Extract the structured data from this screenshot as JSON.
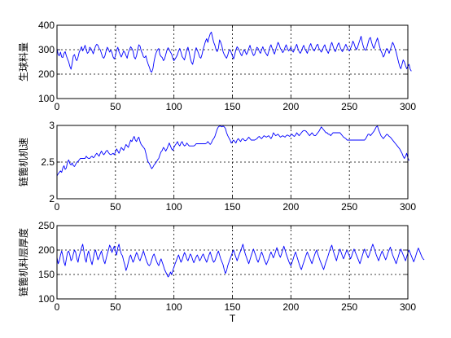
{
  "figure": {
    "background": "#ffffff",
    "line_color": "#0000ff",
    "grid_color": "#000000"
  },
  "chart_data": [
    {
      "type": "line",
      "ylabel": "生球料量",
      "xlabel": "",
      "xlim": [
        0,
        300
      ],
      "ylim": [
        100,
        400
      ],
      "xticks": [
        "0",
        "50",
        "100",
        "150",
        "200",
        "250",
        "300"
      ],
      "yticks": [
        "100",
        "200",
        "300",
        "400"
      ],
      "grid": "dotted",
      "series": [
        {
          "x_start": 0,
          "x_step": 1,
          "values": [
            305,
            280,
            275,
            290,
            270,
            268,
            285,
            292,
            275,
            262,
            250,
            232,
            220,
            245,
            275,
            280,
            262,
            255,
            270,
            290,
            300,
            312,
            295,
            305,
            318,
            300,
            285,
            290,
            310,
            305,
            295,
            283,
            300,
            315,
            322,
            318,
            305,
            300,
            285,
            270,
            265,
            275,
            295,
            310,
            302,
            290,
            298,
            288,
            270,
            262,
            275,
            298,
            310,
            292,
            280,
            270,
            282,
            295,
            288,
            276,
            265,
            288,
            300,
            312,
            305,
            295,
            270,
            262,
            275,
            300,
            320,
            315,
            295,
            285,
            270,
            268,
            275,
            255,
            240,
            228,
            212,
            208,
            222,
            252,
            275,
            290,
            300,
            305,
            280,
            272,
            268,
            255,
            262,
            280,
            298,
            308,
            300,
            290,
            282,
            265,
            255,
            262,
            270,
            280,
            295,
            305,
            290,
            272,
            265,
            258,
            278,
            300,
            310,
            290,
            265,
            248,
            240,
            262,
            290,
            308,
            298,
            285,
            270,
            265,
            280,
            302,
            318,
            335,
            345,
            330,
            350,
            365,
            372,
            350,
            330,
            318,
            300,
            292,
            305,
            340,
            330,
            315,
            292,
            280,
            272,
            265,
            278,
            295,
            300,
            288,
            275,
            262,
            280,
            300,
            312,
            305,
            295,
            282,
            275,
            288,
            300,
            292,
            280,
            290,
            305,
            318,
            300,
            288,
            276,
            280,
            298,
            310,
            305,
            292,
            285,
            300,
            312,
            298,
            290,
            282,
            275,
            292,
            310,
            320,
            305,
            292,
            282,
            300,
            315,
            330,
            320,
            305,
            298,
            288,
            295,
            310,
            320,
            305,
            295,
            300,
            310,
            298,
            290,
            300,
            312,
            322,
            305,
            292,
            285,
            295,
            308,
            318,
            302,
            295,
            285,
            300,
            315,
            325,
            310,
            300,
            295,
            305,
            318,
            322,
            305,
            298,
            290,
            300,
            312,
            320,
            302,
            295,
            285,
            300,
            318,
            330,
            315,
            300,
            292,
            305,
            320,
            328,
            312,
            300,
            292,
            300,
            312,
            322,
            310,
            300,
            295,
            305,
            318,
            335,
            325,
            310,
            300,
            310,
            325,
            340,
            355,
            330,
            312,
            300,
            298,
            310,
            328,
            345,
            350,
            330,
            315,
            305,
            320,
            335,
            348,
            330,
            310,
            295,
            285,
            270,
            278,
            295,
            305,
            298,
            285,
            300,
            315,
            330,
            320,
            305,
            290,
            270,
            250,
            232,
            222,
            240,
            258,
            250,
            235,
            222,
            232,
            240,
            220,
            212
          ]
        }
      ]
    },
    {
      "type": "line",
      "ylabel": "链篦机机速",
      "xlabel": "",
      "xlim": [
        0,
        300
      ],
      "ylim": [
        2,
        3
      ],
      "xticks": [
        "0",
        "50",
        "100",
        "150",
        "200",
        "250",
        "300"
      ],
      "yticks": [
        "2",
        "2.5",
        "3"
      ],
      "grid": "dotted",
      "series": [
        {
          "x_start": 0,
          "x_step": 1,
          "values": [
            2.31,
            2.34,
            2.36,
            2.38,
            2.36,
            2.42,
            2.45,
            2.4,
            2.42,
            2.5,
            2.53,
            2.48,
            2.46,
            2.49,
            2.45,
            2.44,
            2.47,
            2.5,
            2.51,
            2.53,
            2.55,
            2.55,
            2.55,
            2.55,
            2.55,
            2.58,
            2.56,
            2.55,
            2.55,
            2.57,
            2.58,
            2.56,
            2.57,
            2.6,
            2.62,
            2.6,
            2.58,
            2.62,
            2.65,
            2.62,
            2.6,
            2.62,
            2.65,
            2.66,
            2.63,
            2.61,
            2.6,
            2.61,
            2.62,
            2.6,
            2.64,
            2.68,
            2.65,
            2.62,
            2.66,
            2.7,
            2.68,
            2.66,
            2.7,
            2.74,
            2.72,
            2.7,
            2.75,
            2.8,
            2.78,
            2.82,
            2.85,
            2.8,
            2.78,
            2.82,
            2.84,
            2.78,
            2.74,
            2.72,
            2.7,
            2.68,
            2.62,
            2.55,
            2.5,
            2.48,
            2.44,
            2.41,
            2.43,
            2.46,
            2.48,
            2.5,
            2.53,
            2.55,
            2.6,
            2.64,
            2.66,
            2.7,
            2.68,
            2.65,
            2.68,
            2.72,
            2.76,
            2.72,
            2.68,
            2.66,
            2.7,
            2.73,
            2.75,
            2.78,
            2.74,
            2.72,
            2.76,
            2.78,
            2.74,
            2.72,
            2.73,
            2.76,
            2.74,
            2.72,
            2.72,
            2.72,
            2.72,
            2.72,
            2.73,
            2.75,
            2.75,
            2.75,
            2.75,
            2.75,
            2.75,
            2.75,
            2.75,
            2.75,
            2.76,
            2.78,
            2.76,
            2.74,
            2.76,
            2.8,
            2.82,
            2.85,
            2.9,
            2.95,
            2.98,
            2.99,
            2.99,
            2.98,
            2.99,
            2.98,
            2.96,
            2.9,
            2.86,
            2.83,
            2.8,
            2.76,
            2.78,
            2.8,
            2.78,
            2.76,
            2.8,
            2.82,
            2.8,
            2.78,
            2.81,
            2.82,
            2.8,
            2.79,
            2.8,
            2.82,
            2.84,
            2.82,
            2.8,
            2.8,
            2.8,
            2.8,
            2.81,
            2.82,
            2.84,
            2.85,
            2.83,
            2.82,
            2.84,
            2.86,
            2.85,
            2.84,
            2.85,
            2.86,
            2.84,
            2.82,
            2.85,
            2.9,
            2.88,
            2.86,
            2.87,
            2.88,
            2.86,
            2.84,
            2.85,
            2.86,
            2.85,
            2.84,
            2.86,
            2.87,
            2.86,
            2.85,
            2.87,
            2.88,
            2.86,
            2.85,
            2.87,
            2.9,
            2.88,
            2.86,
            2.88,
            2.9,
            2.92,
            2.93,
            2.93,
            2.92,
            2.9,
            2.88,
            2.86,
            2.88,
            2.9,
            2.88,
            2.86,
            2.86,
            2.88,
            2.9,
            2.92,
            2.95,
            2.98,
            2.96,
            2.94,
            2.92,
            2.9,
            2.9,
            2.88,
            2.88,
            2.86,
            2.88,
            2.9,
            2.9,
            2.9,
            2.9,
            2.9,
            2.9,
            2.9,
            2.88,
            2.86,
            2.84,
            2.83,
            2.82,
            2.8,
            2.8,
            2.8,
            2.8,
            2.8,
            2.8,
            2.8,
            2.8,
            2.8,
            2.8,
            2.8,
            2.8,
            2.8,
            2.8,
            2.8,
            2.8,
            2.82,
            2.85,
            2.88,
            2.88,
            2.86,
            2.88,
            2.9,
            2.92,
            2.95,
            2.98,
            2.99,
            2.94,
            2.9,
            2.86,
            2.84,
            2.82,
            2.84,
            2.86,
            2.88,
            2.87,
            2.85,
            2.84,
            2.82,
            2.8,
            2.78,
            2.76,
            2.74,
            2.72,
            2.7,
            2.68,
            2.65,
            2.62,
            2.58,
            2.55,
            2.58,
            2.62,
            2.56,
            2.52
          ]
        }
      ]
    },
    {
      "type": "line",
      "ylabel": "链篦机料层厚度",
      "xlabel": "T",
      "xlim": [
        0,
        300
      ],
      "ylim": [
        100,
        250
      ],
      "xticks": [
        "0",
        "50",
        "100",
        "150",
        "200",
        "250",
        "300"
      ],
      "yticks": [
        "100",
        "150",
        "200",
        "250"
      ],
      "grid": "dotted",
      "series": [
        {
          "x_start": 0,
          "x_step": 1,
          "values": [
            185,
            172,
            178,
            190,
            198,
            188,
            175,
            168,
            182,
            195,
            198,
            190,
            178,
            182,
            192,
            200,
            195,
            182,
            175,
            188,
            196,
            205,
            212,
            198,
            182,
            175,
            190,
            198,
            188,
            178,
            170,
            182,
            195,
            200,
            190,
            180,
            185,
            192,
            198,
            188,
            178,
            172,
            182,
            192,
            200,
            210,
            205,
            195,
            202,
            208,
            198,
            190,
            205,
            212,
            200,
            192,
            188,
            178,
            170,
            158,
            165,
            175,
            185,
            190,
            182,
            175,
            180,
            188,
            195,
            190,
            182,
            178,
            185,
            192,
            198,
            190,
            182,
            175,
            170,
            168,
            172,
            180,
            188,
            192,
            185,
            178,
            172,
            168,
            176,
            182,
            175,
            168,
            160,
            155,
            150,
            145,
            148,
            155,
            150,
            158,
            165,
            172,
            178,
            185,
            190,
            182,
            175,
            180,
            188,
            195,
            190,
            182,
            178,
            185,
            192,
            188,
            180,
            174,
            180,
            186,
            190,
            184,
            178,
            182,
            188,
            192,
            186,
            180,
            175,
            182,
            190,
            196,
            188,
            180,
            175,
            178,
            185,
            192,
            198,
            190,
            182,
            176,
            170,
            160,
            152,
            158,
            168,
            175,
            182,
            188,
            195,
            200,
            192,
            185,
            178,
            185,
            192,
            198,
            205,
            212,
            200,
            192,
            185,
            178,
            172,
            180,
            188,
            195,
            202,
            195,
            188,
            180,
            175,
            182,
            190,
            196,
            190,
            182,
            176,
            170,
            176,
            182,
            190,
            196,
            190,
            184,
            190,
            198,
            205,
            198,
            190,
            185,
            192,
            200,
            208,
            200,
            192,
            185,
            178,
            172,
            168,
            175,
            182,
            190,
            196,
            188,
            180,
            172,
            165,
            160,
            168,
            175,
            182,
            190,
            196,
            190,
            184,
            178,
            172,
            180,
            188,
            195,
            200,
            192,
            185,
            178,
            172,
            166,
            160,
            168,
            176,
            182,
            190,
            198,
            205,
            210,
            200,
            192,
            185,
            178,
            188,
            196,
            202,
            195,
            188,
            182,
            188,
            195,
            200,
            194,
            188,
            182,
            188,
            196,
            202,
            196,
            190,
            184,
            178,
            172,
            180,
            188,
            196,
            202,
            196,
            190,
            184,
            190,
            198,
            205,
            212,
            205,
            198,
            190,
            184,
            178,
            185,
            192,
            198,
            192,
            186,
            180,
            186,
            194,
            200,
            206,
            198,
            190,
            184,
            178,
            172,
            180,
            188,
            196,
            202,
            196,
            190,
            184,
            178,
            186,
            194,
            200,
            194,
            188,
            182,
            176,
            182,
            190,
            198,
            204,
            198,
            192,
            186,
            182,
            180
          ]
        }
      ]
    }
  ]
}
